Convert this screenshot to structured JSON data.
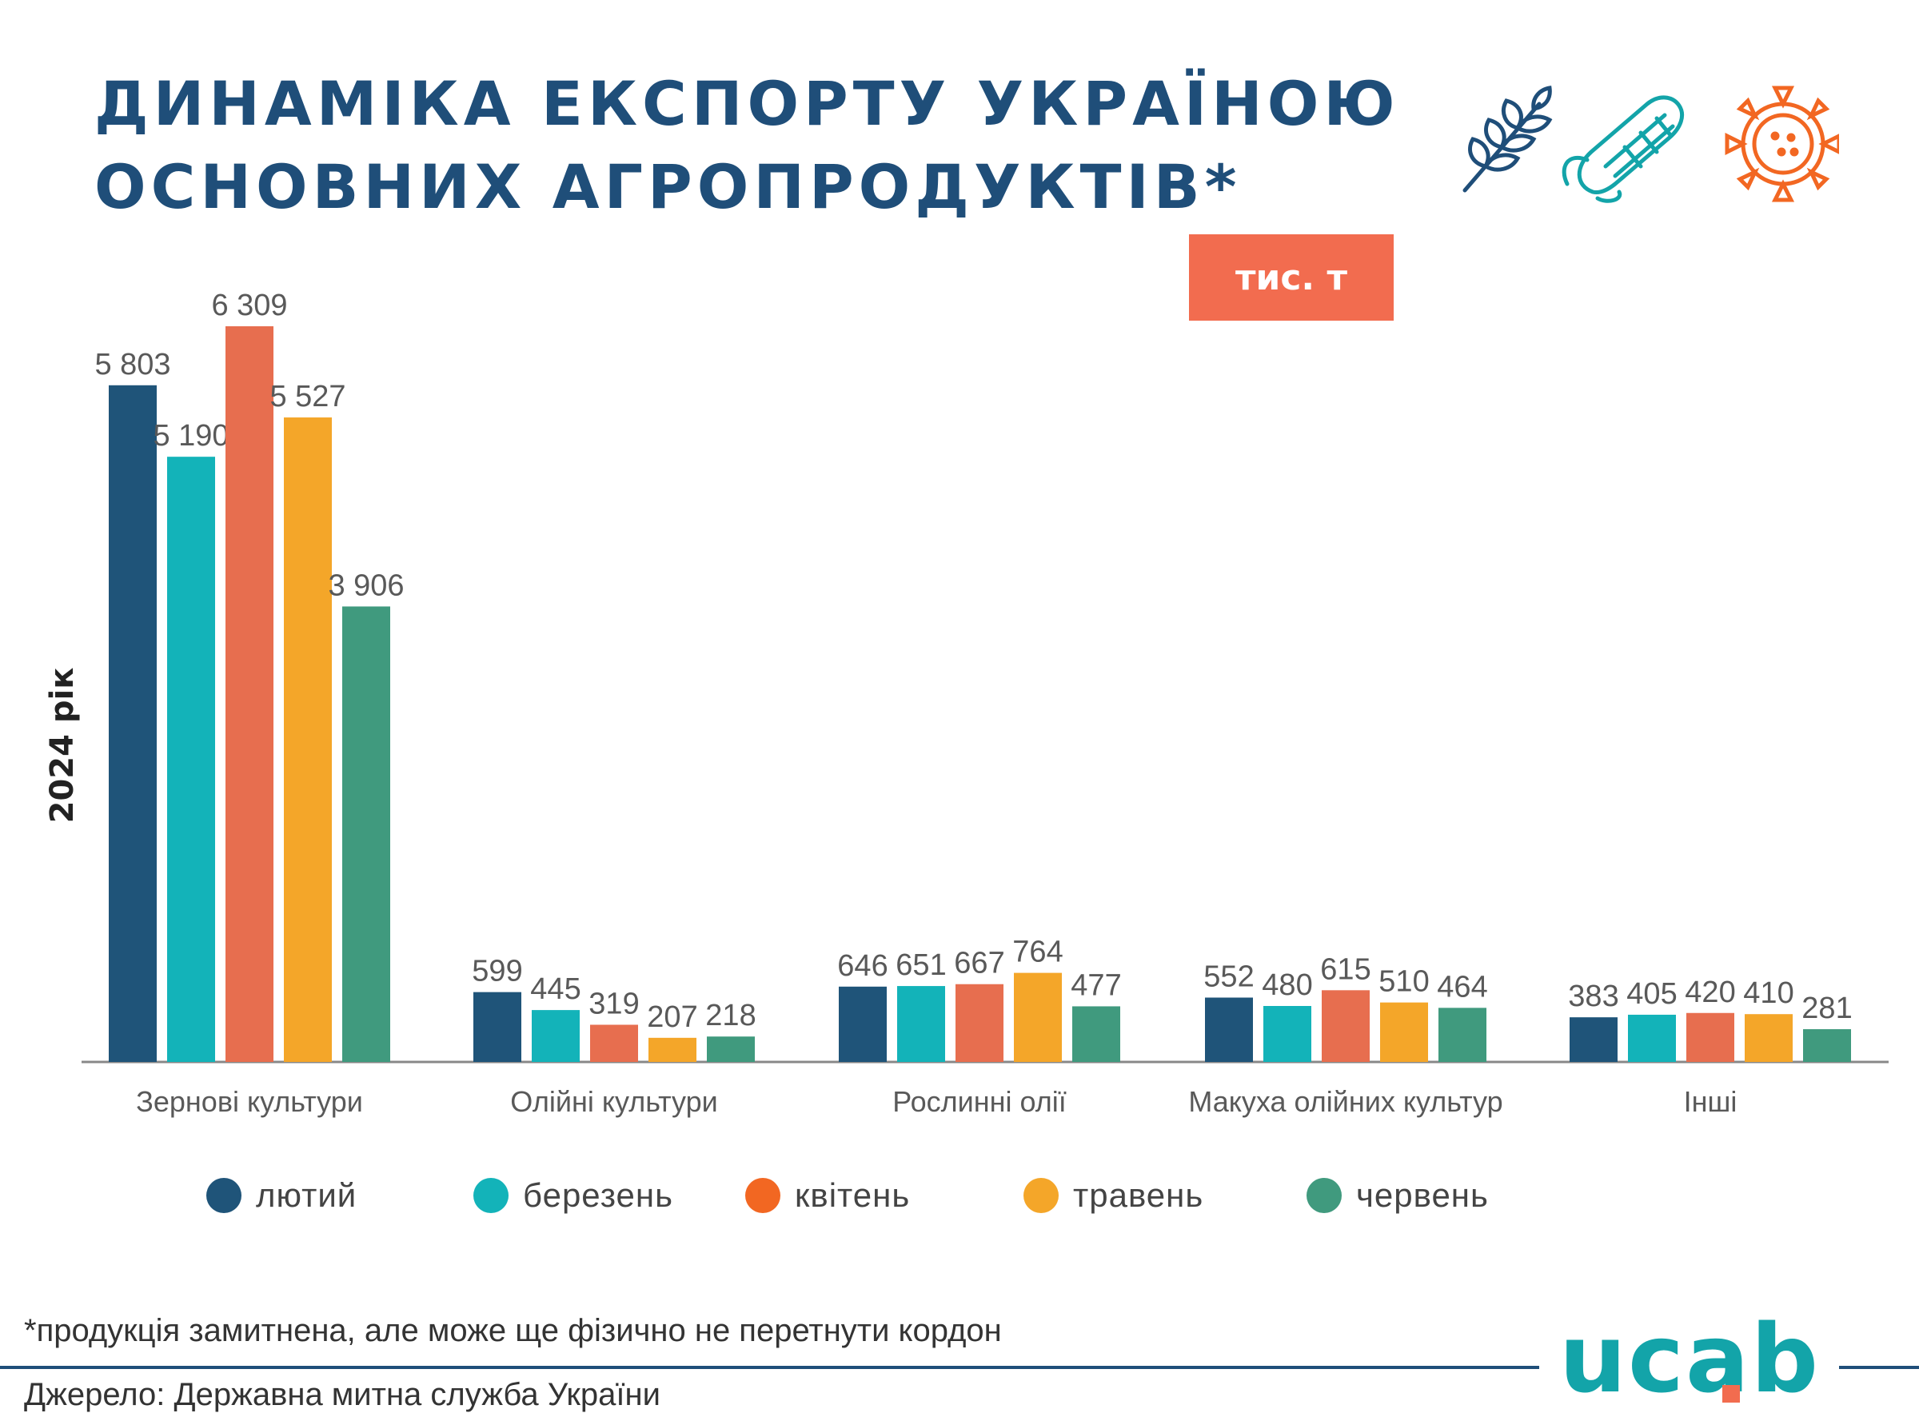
{
  "header": {
    "title_line1": "ДИНАМІКА ЕКСПОРТУ УКРАЇНОЮ",
    "title_line2": "ОСНОВНИХ АГРОПРОДУКТІВ*",
    "unit": "тис. т",
    "icons": [
      "wheat-icon",
      "corn-icon",
      "sunflower-icon"
    ]
  },
  "y_axis_label": "2024 рік",
  "chart_data": {
    "type": "bar",
    "title": "ДИНАМІКА ЕКСПОРТУ УКРАЇНОЮ ОСНОВНИХ АГРОПРОДУКТІВ*",
    "ylabel": "2024 рік",
    "unit": "тис. т",
    "ylim": [
      0,
      6309
    ],
    "grid": false,
    "legend_position": "bottom",
    "categories": [
      "Зернові культури",
      "Олійні культури",
      "Рослинні олії",
      "Макуха олійних культур",
      "Інші"
    ],
    "series": [
      {
        "name": "лютий",
        "color": "#1f5479",
        "values": [
          5803,
          599,
          646,
          552,
          383
        ],
        "labels": [
          "5 803",
          "599",
          "646",
          "552",
          "383"
        ]
      },
      {
        "name": "березень",
        "color": "#13b3b9",
        "values": [
          5190,
          445,
          651,
          480,
          405
        ],
        "labels": [
          "5 190",
          "445",
          "651",
          "480",
          "405"
        ]
      },
      {
        "name": "квітень",
        "color": "#e76e4f",
        "values": [
          6309,
          319,
          667,
          615,
          420
        ],
        "labels": [
          "6 309",
          "319",
          "667",
          "615",
          "420"
        ]
      },
      {
        "name": "травень",
        "color": "#f4a629",
        "values": [
          5527,
          207,
          764,
          510,
          410
        ],
        "labels": [
          "5 527",
          "207",
          "764",
          "510",
          "410"
        ]
      },
      {
        "name": "червень",
        "color": "#409a7e",
        "values": [
          3906,
          218,
          477,
          464,
          281
        ],
        "labels": [
          "3 906",
          "218",
          "477",
          "464",
          "281"
        ]
      }
    ]
  },
  "legend": {
    "items": [
      {
        "label": "лютий",
        "color": "#1f5479"
      },
      {
        "label": "березень",
        "color": "#13b3b9"
      },
      {
        "label": "квітень",
        "color": "#f26722"
      },
      {
        "label": "травень",
        "color": "#f4a629"
      },
      {
        "label": "червень",
        "color": "#409a7e"
      }
    ]
  },
  "footer": {
    "footnote": "*продукція замитнена, але може ще фізично не перетнути кордон",
    "source": "Джерело: Державна митна служба України",
    "logo_text": "ucab",
    "colors": {
      "dark": "#1f4e79",
      "teal": "#13a4a9",
      "orange": "#f26c4f"
    }
  }
}
